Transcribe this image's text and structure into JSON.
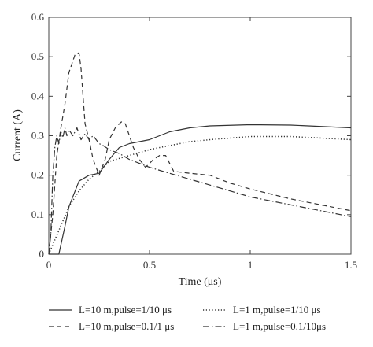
{
  "chart_data": {
    "type": "line",
    "title": "",
    "xlabel": "Time (μs)",
    "ylabel": "Current (A)",
    "xlim": [
      0,
      1.5
    ],
    "ylim": [
      0,
      0.6
    ],
    "xticks": [
      0,
      0.5,
      1,
      1.5
    ],
    "xtick_labels": [
      "0",
      "0.5",
      "1",
      "1.5"
    ],
    "yticks": [
      0,
      0.1,
      0.2,
      0.3,
      0.4,
      0.5,
      0.6
    ],
    "ytick_labels": [
      "0",
      "0.1",
      "0.2",
      "0.3",
      "0.4",
      "0.5",
      "0.6"
    ],
    "grid": false,
    "legend_position": "bottom, two columns",
    "series": [
      {
        "name": "L=10 m,pulse=1/10 μs",
        "style": "solid",
        "color": "#333333",
        "points": [
          [
            0,
            0
          ],
          [
            0.05,
            0
          ],
          [
            0.08,
            0.07
          ],
          [
            0.1,
            0.12
          ],
          [
            0.15,
            0.185
          ],
          [
            0.2,
            0.2
          ],
          [
            0.25,
            0.205
          ],
          [
            0.3,
            0.24
          ],
          [
            0.35,
            0.27
          ],
          [
            0.4,
            0.28
          ],
          [
            0.5,
            0.29
          ],
          [
            0.6,
            0.31
          ],
          [
            0.7,
            0.32
          ],
          [
            0.8,
            0.325
          ],
          [
            1.0,
            0.328
          ],
          [
            1.2,
            0.327
          ],
          [
            1.5,
            0.32
          ]
        ]
      },
      {
        "name": "L=1 m,pulse=1/10 μs",
        "style": "dotted",
        "color": "#333333",
        "points": [
          [
            0,
            0
          ],
          [
            0.05,
            0.06
          ],
          [
            0.1,
            0.12
          ],
          [
            0.15,
            0.16
          ],
          [
            0.2,
            0.19
          ],
          [
            0.25,
            0.21
          ],
          [
            0.3,
            0.235
          ],
          [
            0.4,
            0.25
          ],
          [
            0.5,
            0.265
          ],
          [
            0.6,
            0.275
          ],
          [
            0.7,
            0.285
          ],
          [
            0.8,
            0.29
          ],
          [
            1.0,
            0.298
          ],
          [
            1.2,
            0.298
          ],
          [
            1.5,
            0.29
          ]
        ]
      },
      {
        "name": "L=10 m,pulse=0.1/1 μs",
        "style": "dashed",
        "color": "#333333",
        "points": [
          [
            0,
            0
          ],
          [
            0.02,
            0.1
          ],
          [
            0.04,
            0.25
          ],
          [
            0.06,
            0.32
          ],
          [
            0.08,
            0.38
          ],
          [
            0.1,
            0.46
          ],
          [
            0.13,
            0.505
          ],
          [
            0.15,
            0.51
          ],
          [
            0.16,
            0.47
          ],
          [
            0.18,
            0.33
          ],
          [
            0.2,
            0.29
          ],
          [
            0.22,
            0.24
          ],
          [
            0.25,
            0.2
          ],
          [
            0.28,
            0.24
          ],
          [
            0.3,
            0.29
          ],
          [
            0.33,
            0.32
          ],
          [
            0.36,
            0.335
          ],
          [
            0.38,
            0.33
          ],
          [
            0.42,
            0.27
          ],
          [
            0.45,
            0.24
          ],
          [
            0.48,
            0.22
          ],
          [
            0.52,
            0.24
          ],
          [
            0.55,
            0.25
          ],
          [
            0.58,
            0.25
          ],
          [
            0.62,
            0.21
          ],
          [
            0.7,
            0.205
          ],
          [
            0.8,
            0.2
          ],
          [
            0.9,
            0.18
          ],
          [
            1.0,
            0.165
          ],
          [
            1.2,
            0.14
          ],
          [
            1.5,
            0.11
          ]
        ]
      },
      {
        "name": "L=1 m,pulse=0.1/10μs",
        "style": "dashdot",
        "color": "#333333",
        "points": [
          [
            0,
            0
          ],
          [
            0.01,
            0.05
          ],
          [
            0.02,
            0.2
          ],
          [
            0.03,
            0.27
          ],
          [
            0.04,
            0.3
          ],
          [
            0.05,
            0.28
          ],
          [
            0.06,
            0.31
          ],
          [
            0.07,
            0.295
          ],
          [
            0.08,
            0.32
          ],
          [
            0.09,
            0.3
          ],
          [
            0.1,
            0.315
          ],
          [
            0.12,
            0.3
          ],
          [
            0.14,
            0.32
          ],
          [
            0.16,
            0.29
          ],
          [
            0.18,
            0.305
          ],
          [
            0.2,
            0.29
          ],
          [
            0.22,
            0.3
          ],
          [
            0.25,
            0.28
          ],
          [
            0.27,
            0.275
          ],
          [
            0.3,
            0.265
          ],
          [
            0.35,
            0.255
          ],
          [
            0.4,
            0.24
          ],
          [
            0.45,
            0.23
          ],
          [
            0.5,
            0.22
          ],
          [
            0.6,
            0.205
          ],
          [
            0.7,
            0.19
          ],
          [
            0.8,
            0.175
          ],
          [
            0.9,
            0.16
          ],
          [
            1.0,
            0.145
          ],
          [
            1.1,
            0.135
          ],
          [
            1.2,
            0.125
          ],
          [
            1.3,
            0.115
          ],
          [
            1.4,
            0.105
          ],
          [
            1.5,
            0.095
          ]
        ]
      }
    ]
  }
}
